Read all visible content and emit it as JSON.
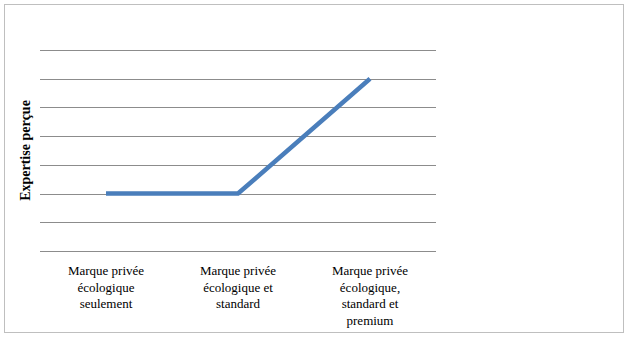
{
  "chart_data": {
    "type": "line",
    "y_label": "Expertise perçue",
    "categories": [
      "Marque privée écologique seulement",
      "Marque privée écologique et standard",
      "Marque privée écologique, standard et premium"
    ],
    "values": [
      2,
      2,
      6
    ],
    "color": "#4a7ebb",
    "ylim": [
      0,
      7
    ],
    "yticks": [
      0,
      1,
      2,
      3,
      4,
      5,
      6,
      7
    ],
    "grid": true,
    "tick_labels": "x"
  }
}
